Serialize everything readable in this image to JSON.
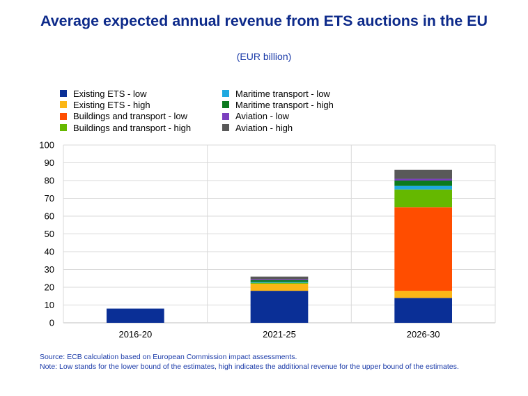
{
  "chart_data": {
    "type": "bar",
    "stacked": true,
    "title": "Average expected annual revenue from ETS auctions in the EU",
    "subtitle": "(EUR billion)",
    "categories": [
      "2016-20",
      "2021-25",
      "2026-30"
    ],
    "ylim": [
      0,
      100
    ],
    "yticks": [
      0,
      10,
      20,
      30,
      40,
      50,
      60,
      70,
      80,
      90,
      100
    ],
    "grid": true,
    "series": [
      {
        "name": "Existing ETS - low",
        "color": "#0a2f96",
        "values": [
          8,
          18,
          14
        ]
      },
      {
        "name": "Existing ETS - high",
        "color": "#fbb616",
        "values": [
          0,
          4,
          4
        ]
      },
      {
        "name": "Buildings and transport - low",
        "color": "#ff4d00",
        "values": [
          0,
          0,
          47
        ]
      },
      {
        "name": "Buildings and transport - high",
        "color": "#65b800",
        "values": [
          0,
          0.5,
          10
        ]
      },
      {
        "name": "Maritime transport - low",
        "color": "#1fa9e0",
        "values": [
          0,
          0.5,
          2
        ]
      },
      {
        "name": "Maritime transport - high",
        "color": "#0b7a1e",
        "values": [
          0,
          1,
          3
        ]
      },
      {
        "name": "Aviation - low",
        "color": "#7b3fbf",
        "values": [
          0,
          0.5,
          1
        ]
      },
      {
        "name": "Aviation - high",
        "color": "#595959",
        "values": [
          0,
          1.5,
          5
        ]
      }
    ]
  },
  "footer": {
    "source": "Source: ECB calculation based on European Commission impact assessments.",
    "note": "Note: Low stands for the lower bound of the estimates, high indicates the additional revenue for the upper bound of the estimates."
  }
}
